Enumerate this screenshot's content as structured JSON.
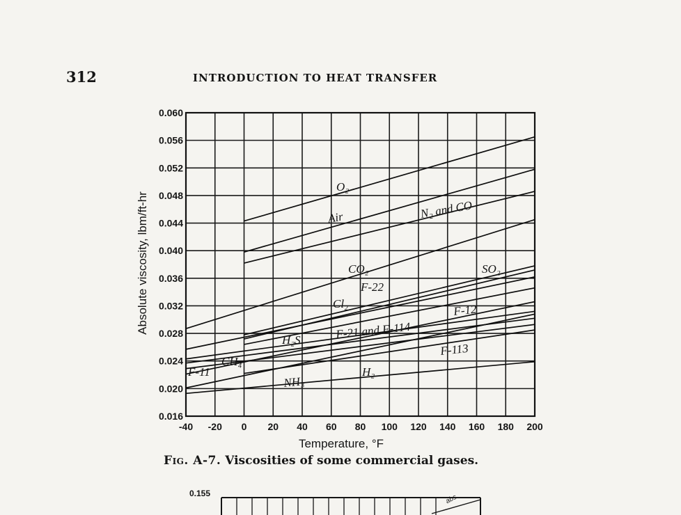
{
  "page": {
    "number": "312",
    "running_head": "INTRODUCTION TO HEAT TRANSFER",
    "caption_label": "Fig. A-7.",
    "caption_text": "Viscosities of some commercial gases.",
    "next_figure_tick": "0.155",
    "next_figure_label": "abs"
  },
  "chart_data": {
    "type": "line",
    "title": "",
    "xlabel": "Temperature, °F",
    "ylabel": "Absolute viscosity, lbm/ft-hr",
    "xlim": [
      -40,
      200
    ],
    "ylim": [
      0.016,
      0.06
    ],
    "grid": true,
    "x_ticks": [
      -40,
      -20,
      0,
      20,
      40,
      60,
      80,
      100,
      120,
      140,
      160,
      180,
      200
    ],
    "x_tick_labels": [
      "-40",
      "-20",
      "0",
      "20",
      "40",
      "60",
      "80",
      "100",
      "120",
      "140",
      "160",
      "180",
      "200"
    ],
    "y_ticks": [
      0.016,
      0.02,
      0.024,
      0.028,
      0.032,
      0.036,
      0.04,
      0.044,
      0.048,
      0.052,
      0.056,
      0.06
    ],
    "y_tick_labels": [
      "0.016",
      "0.020",
      "0.024",
      "0.028",
      "0.032",
      "0.036",
      "0.040",
      "0.044",
      "0.048",
      "0.052",
      "0.056",
      "0.060"
    ],
    "series": [
      {
        "name": "O₂",
        "x": [
          0,
          200
        ],
        "y": [
          0.0443,
          0.0565
        ]
      },
      {
        "name": "Air",
        "x": [
          0,
          200
        ],
        "y": [
          0.0398,
          0.0518
        ]
      },
      {
        "name": "N₂ and CO",
        "x": [
          0,
          200
        ],
        "y": [
          0.0382,
          0.0486
        ]
      },
      {
        "name": "CO₂",
        "x": [
          -40,
          200
        ],
        "y": [
          0.0287,
          0.0445
        ]
      },
      {
        "name": "SO₂",
        "x": [
          0,
          200
        ],
        "y": [
          0.0278,
          0.0378
        ]
      },
      {
        "name": "Cl₂",
        "x": [
          0,
          200
        ],
        "y": [
          0.0272,
          0.0372
        ]
      },
      {
        "name": "F-22",
        "x": [
          -40,
          200
        ],
        "y": [
          0.0257,
          0.0362
        ]
      },
      {
        "name": "H₂S",
        "x": [
          0,
          200
        ],
        "y": [
          0.0264,
          0.0346
        ]
      },
      {
        "name": "F-21 and F-114",
        "x": [
          -40,
          200
        ],
        "y": [
          0.0243,
          0.0312
        ]
      },
      {
        "name": "F-12",
        "x": [
          -40,
          200
        ],
        "y": [
          0.0237,
          0.0302
        ]
      },
      {
        "name": "F-11",
        "x": [
          -40,
          200
        ],
        "y": [
          0.0229,
          0.0293
        ]
      },
      {
        "name": "CH₄",
        "x": [
          -40,
          200
        ],
        "y": [
          0.0221,
          0.0326
        ]
      },
      {
        "name": "F-113",
        "x": [
          0,
          200
        ],
        "y": [
          0.0222,
          0.0285
        ]
      },
      {
        "name": "NH₃",
        "x": [
          -40,
          200
        ],
        "y": [
          0.0201,
          0.0308
        ]
      },
      {
        "name": "H₂",
        "x": [
          -40,
          200
        ],
        "y": [
          0.0193,
          0.0239
        ]
      }
    ]
  }
}
